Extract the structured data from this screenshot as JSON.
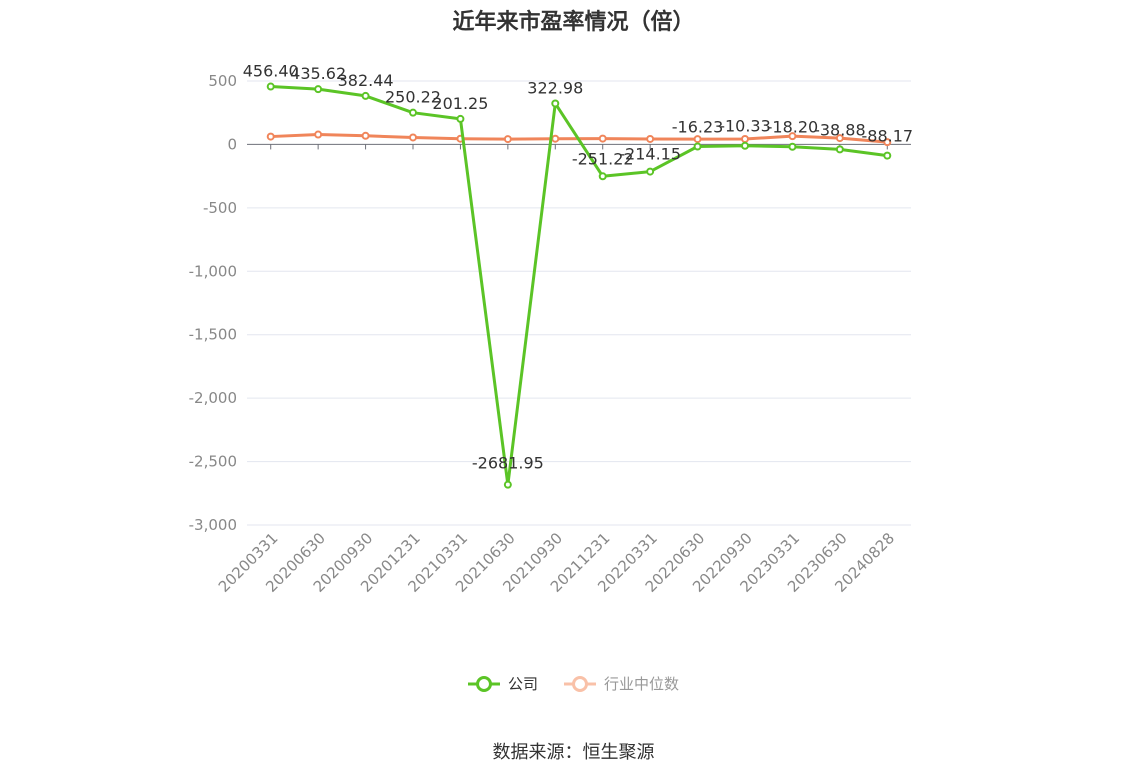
{
  "chart_data": {
    "type": "line",
    "title": "近年来市盈率情况（倍）",
    "categories": [
      "20200331",
      "20200630",
      "20200930",
      "20201231",
      "20210331",
      "20210630",
      "20210930",
      "20211231",
      "20220331",
      "20220630",
      "20220930",
      "20230331",
      "20230630",
      "20240828"
    ],
    "series": [
      {
        "name": "公司",
        "color": "#5bc426",
        "values": [
          456.4,
          435.62,
          382.44,
          250.22,
          201.25,
          -2681.95,
          322.98,
          -251.22,
          -214.15,
          -16.23,
          -10.33,
          -18.2,
          -38.88,
          -88.17
        ],
        "labels": [
          "456.40",
          "435.62",
          "382.44",
          "250.22",
          "201.25",
          "-2681.95",
          "322.98",
          "-251.22",
          "-214.15",
          "-16.23",
          "-10.33",
          "-18.20",
          "-38.88",
          "-88.17"
        ]
      },
      {
        "name": "行业中位数",
        "color": "#f0855a",
        "values": [
          62,
          78,
          68,
          55,
          45,
          42,
          45,
          46,
          43,
          42,
          43,
          65,
          50,
          18
        ]
      }
    ],
    "ylim": [
      -3000,
      500
    ],
    "yticks": [
      500,
      0,
      -500,
      -1000,
      -1500,
      -2000,
      -2500,
      -3000
    ],
    "ytick_labels": [
      "500",
      "0",
      "-500",
      "-1,000",
      "-1,500",
      "-2,000",
      "-2,500",
      "-3,000"
    ],
    "grid": true,
    "legend_position": "bottom"
  },
  "source": "数据来源：恒生聚源"
}
